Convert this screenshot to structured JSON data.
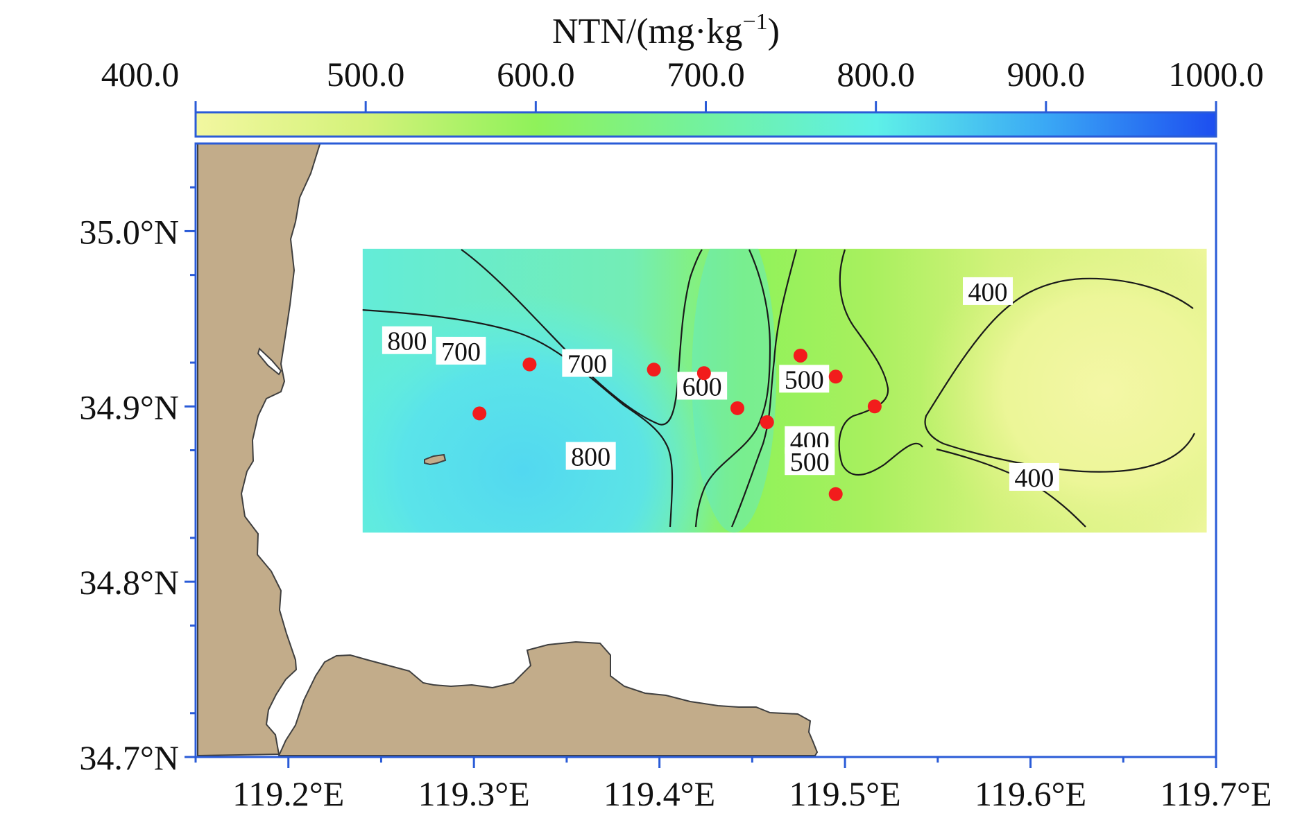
{
  "colorbar": {
    "title_main": "NTN/(mg·kg",
    "title_sup": "−1",
    "title_end": ")",
    "ticks": [
      "400.0",
      "500.0",
      "600.0",
      "700.0",
      "800.0",
      "900.0",
      "1000.0"
    ],
    "tick_values": [
      400,
      500,
      600,
      700,
      800,
      900,
      1000
    ],
    "gradient_stops": [
      {
        "value": 400,
        "color": "#f2f7a0"
      },
      {
        "value": 500,
        "color": "#d4f27a"
      },
      {
        "value": 600,
        "color": "#8ff25a"
      },
      {
        "value": 700,
        "color": "#72f2a0"
      },
      {
        "value": 800,
        "color": "#5ef0e8"
      },
      {
        "value": 900,
        "color": "#3aa8f5"
      },
      {
        "value": 1000,
        "color": "#1d4ef0"
      }
    ]
  },
  "map": {
    "lon_range": [
      119.15,
      119.7
    ],
    "lat_range": [
      34.7,
      35.05
    ],
    "lat_labels": [
      "35.0°N",
      "34.9°N",
      "34.8°N",
      "34.7°N"
    ],
    "lat_values": [
      35.0,
      34.9,
      34.8,
      34.7
    ],
    "lon_labels": [
      "119.2°E",
      "119.3°E",
      "119.4°E",
      "119.5°E",
      "119.6°E",
      "119.7°E"
    ],
    "lon_values": [
      119.2,
      119.3,
      119.4,
      119.5,
      119.6,
      119.7
    ],
    "land_color": "#c2ac8a",
    "frame_color": "#2a5bd7",
    "study_area": {
      "lon": [
        119.24,
        119.695
      ],
      "lat": [
        34.828,
        34.99
      ]
    }
  },
  "contour_labels": [
    {
      "text": "800",
      "lon": 119.264,
      "lat": 34.937
    },
    {
      "text": "700",
      "lon": 119.293,
      "lat": 34.931
    },
    {
      "text": "700",
      "lon": 119.361,
      "lat": 34.924
    },
    {
      "text": "600",
      "lon": 119.423,
      "lat": 34.911
    },
    {
      "text": "500",
      "lon": 119.478,
      "lat": 34.915
    },
    {
      "text": "800",
      "lon": 119.363,
      "lat": 34.871
    },
    {
      "text": "400",
      "lon": 119.481,
      "lat": 34.88
    },
    {
      "text": "500",
      "lon": 119.481,
      "lat": 34.868
    },
    {
      "text": "400",
      "lon": 119.577,
      "lat": 34.965
    },
    {
      "text": "400",
      "lon": 119.602,
      "lat": 34.859
    }
  ],
  "sample_points": [
    {
      "lon": 119.33,
      "lat": 34.924
    },
    {
      "lon": 119.303,
      "lat": 34.896
    },
    {
      "lon": 119.397,
      "lat": 34.921
    },
    {
      "lon": 119.424,
      "lat": 34.919
    },
    {
      "lon": 119.442,
      "lat": 34.899
    },
    {
      "lon": 119.458,
      "lat": 34.891
    },
    {
      "lon": 119.476,
      "lat": 34.929
    },
    {
      "lon": 119.495,
      "lat": 34.917
    },
    {
      "lon": 119.516,
      "lat": 34.9
    },
    {
      "lon": 119.495,
      "lat": 34.85
    }
  ]
}
